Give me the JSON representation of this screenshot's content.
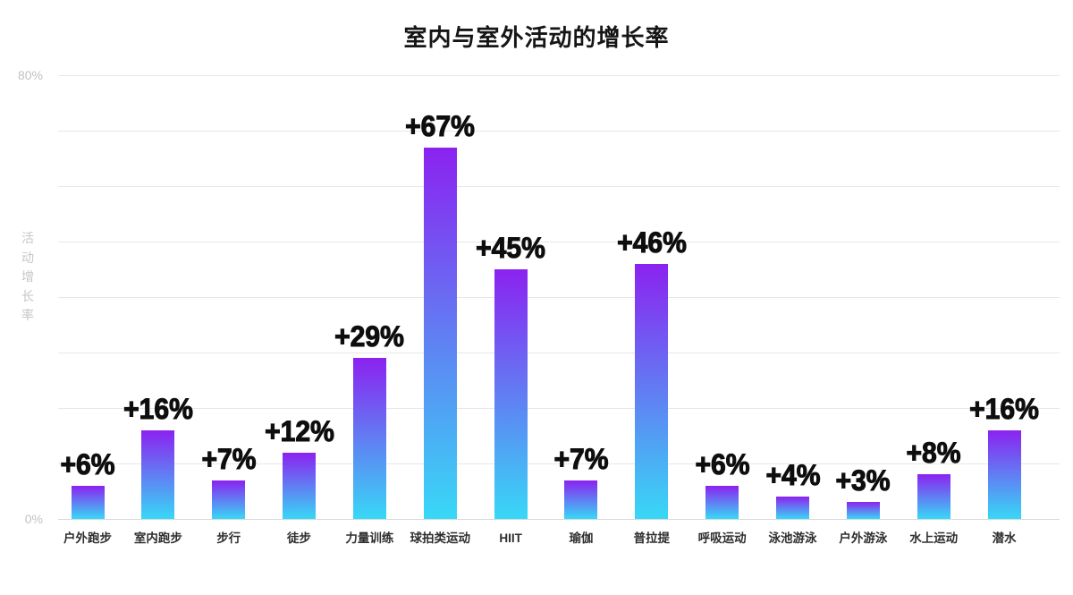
{
  "title": "室内与室外活动的增长率",
  "y_axis": {
    "label": "活动增长率",
    "top_tick": "80%",
    "bottom_tick": "0%"
  },
  "colors": {
    "bar_gradient_top": "#8b22f0",
    "bar_gradient_bottom": "#38d8f6",
    "gridline": "#e7e7e7",
    "baseline": "#d9d9d9",
    "tick_text": "#c2c2c2",
    "axis_label_text": "#c6c6c6",
    "category_text": "#2e2e2e",
    "value_text": "#0e0e0e",
    "title_text": "#151515",
    "background": "#ffffff"
  },
  "chart_data": {
    "type": "bar",
    "title": "室内与室外活动的增长率",
    "xlabel": "",
    "ylabel": "活动增长率",
    "ylim": [
      0,
      80
    ],
    "ytick_labels_visible": [
      "80%",
      "0%"
    ],
    "grid": "horizontal gridlines every 10%, light gray, legend none",
    "legend": "none",
    "categories": [
      "户外跑步",
      "室内跑步",
      "步行",
      "徒步",
      "力量训练",
      "球拍类运动",
      "HIIT",
      "瑜伽",
      "普拉提",
      "呼吸运动",
      "泳池游泳",
      "户外游泳",
      "水上运动",
      "潜水"
    ],
    "values": [
      6,
      16,
      7,
      12,
      29,
      67,
      45,
      7,
      46,
      6,
      4,
      3,
      8,
      16
    ],
    "value_labels": [
      "+6%",
      "+16%",
      "+7%",
      "+12%",
      "+29%",
      "+67%",
      "+45%",
      "+7%",
      "+46%",
      "+6%",
      "+4%",
      "+3%",
      "+8%",
      "+16%"
    ],
    "bar_style": "vertical gradient per bar, purple top to cyan bottom"
  }
}
